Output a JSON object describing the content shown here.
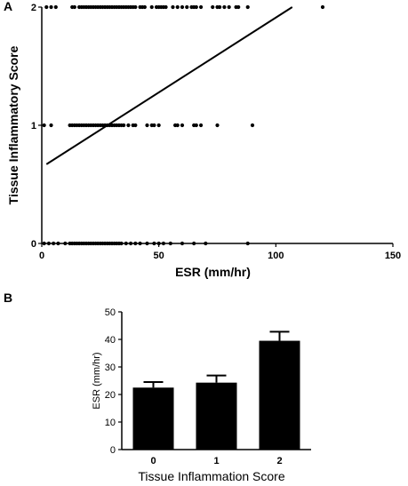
{
  "chart_data": [
    {
      "panel": "A",
      "type": "scatter",
      "xlabel": "ESR (mm/hr)",
      "ylabel": "Tissue  Inflammatory Score",
      "xlim": [
        0,
        150
      ],
      "ylim": [
        0,
        2
      ],
      "xticks": [
        "0",
        "50",
        "100",
        "150"
      ],
      "yticks": [
        "0",
        "1",
        "2"
      ],
      "series": [
        {
          "y": 2,
          "x": [
            2,
            4,
            6,
            13,
            14,
            16,
            17,
            18,
            19,
            20,
            21,
            22,
            23,
            24,
            25,
            26,
            27,
            28,
            29,
            30,
            31,
            32,
            33,
            34,
            35,
            36,
            37,
            38,
            39,
            40,
            42,
            43,
            44,
            47,
            49,
            50,
            51,
            52,
            53,
            56,
            58,
            60,
            62,
            64,
            65,
            66,
            68,
            73,
            75,
            76,
            78,
            80,
            83,
            84,
            88,
            120
          ]
        },
        {
          "y": 1,
          "x": [
            1,
            4,
            12,
            13,
            14,
            15,
            16,
            17,
            18,
            19,
            20,
            21,
            22,
            23,
            24,
            25,
            26,
            27,
            28,
            29,
            30,
            31,
            32,
            33,
            34,
            35,
            37,
            39,
            40,
            45,
            47,
            48,
            50,
            57,
            58,
            60,
            65,
            66,
            68,
            75,
            90
          ]
        },
        {
          "y": 0,
          "x": [
            1,
            3,
            5,
            7,
            10,
            12,
            13,
            14,
            15,
            16,
            17,
            18,
            19,
            20,
            21,
            22,
            23,
            24,
            25,
            26,
            27,
            28,
            29,
            30,
            31,
            32,
            33,
            34,
            36,
            38,
            40,
            42,
            45,
            48,
            50,
            52,
            55,
            60,
            65,
            70,
            88
          ]
        }
      ],
      "fit_line": {
        "x": [
          2,
          107
        ],
        "y": [
          0.67,
          2.0
        ]
      }
    },
    {
      "panel": "B",
      "type": "bar",
      "xlabel": "Tissue  Inflammation Score",
      "ylabel": "ESR (mm/hr)",
      "categories": [
        "0",
        "1",
        "2"
      ],
      "values": [
        22.5,
        24.3,
        39.5
      ],
      "error": [
        2.0,
        2.6,
        3.3
      ],
      "ylim": [
        0,
        50
      ],
      "yticks": [
        "0",
        "10",
        "20",
        "30",
        "40",
        "50"
      ]
    }
  ]
}
